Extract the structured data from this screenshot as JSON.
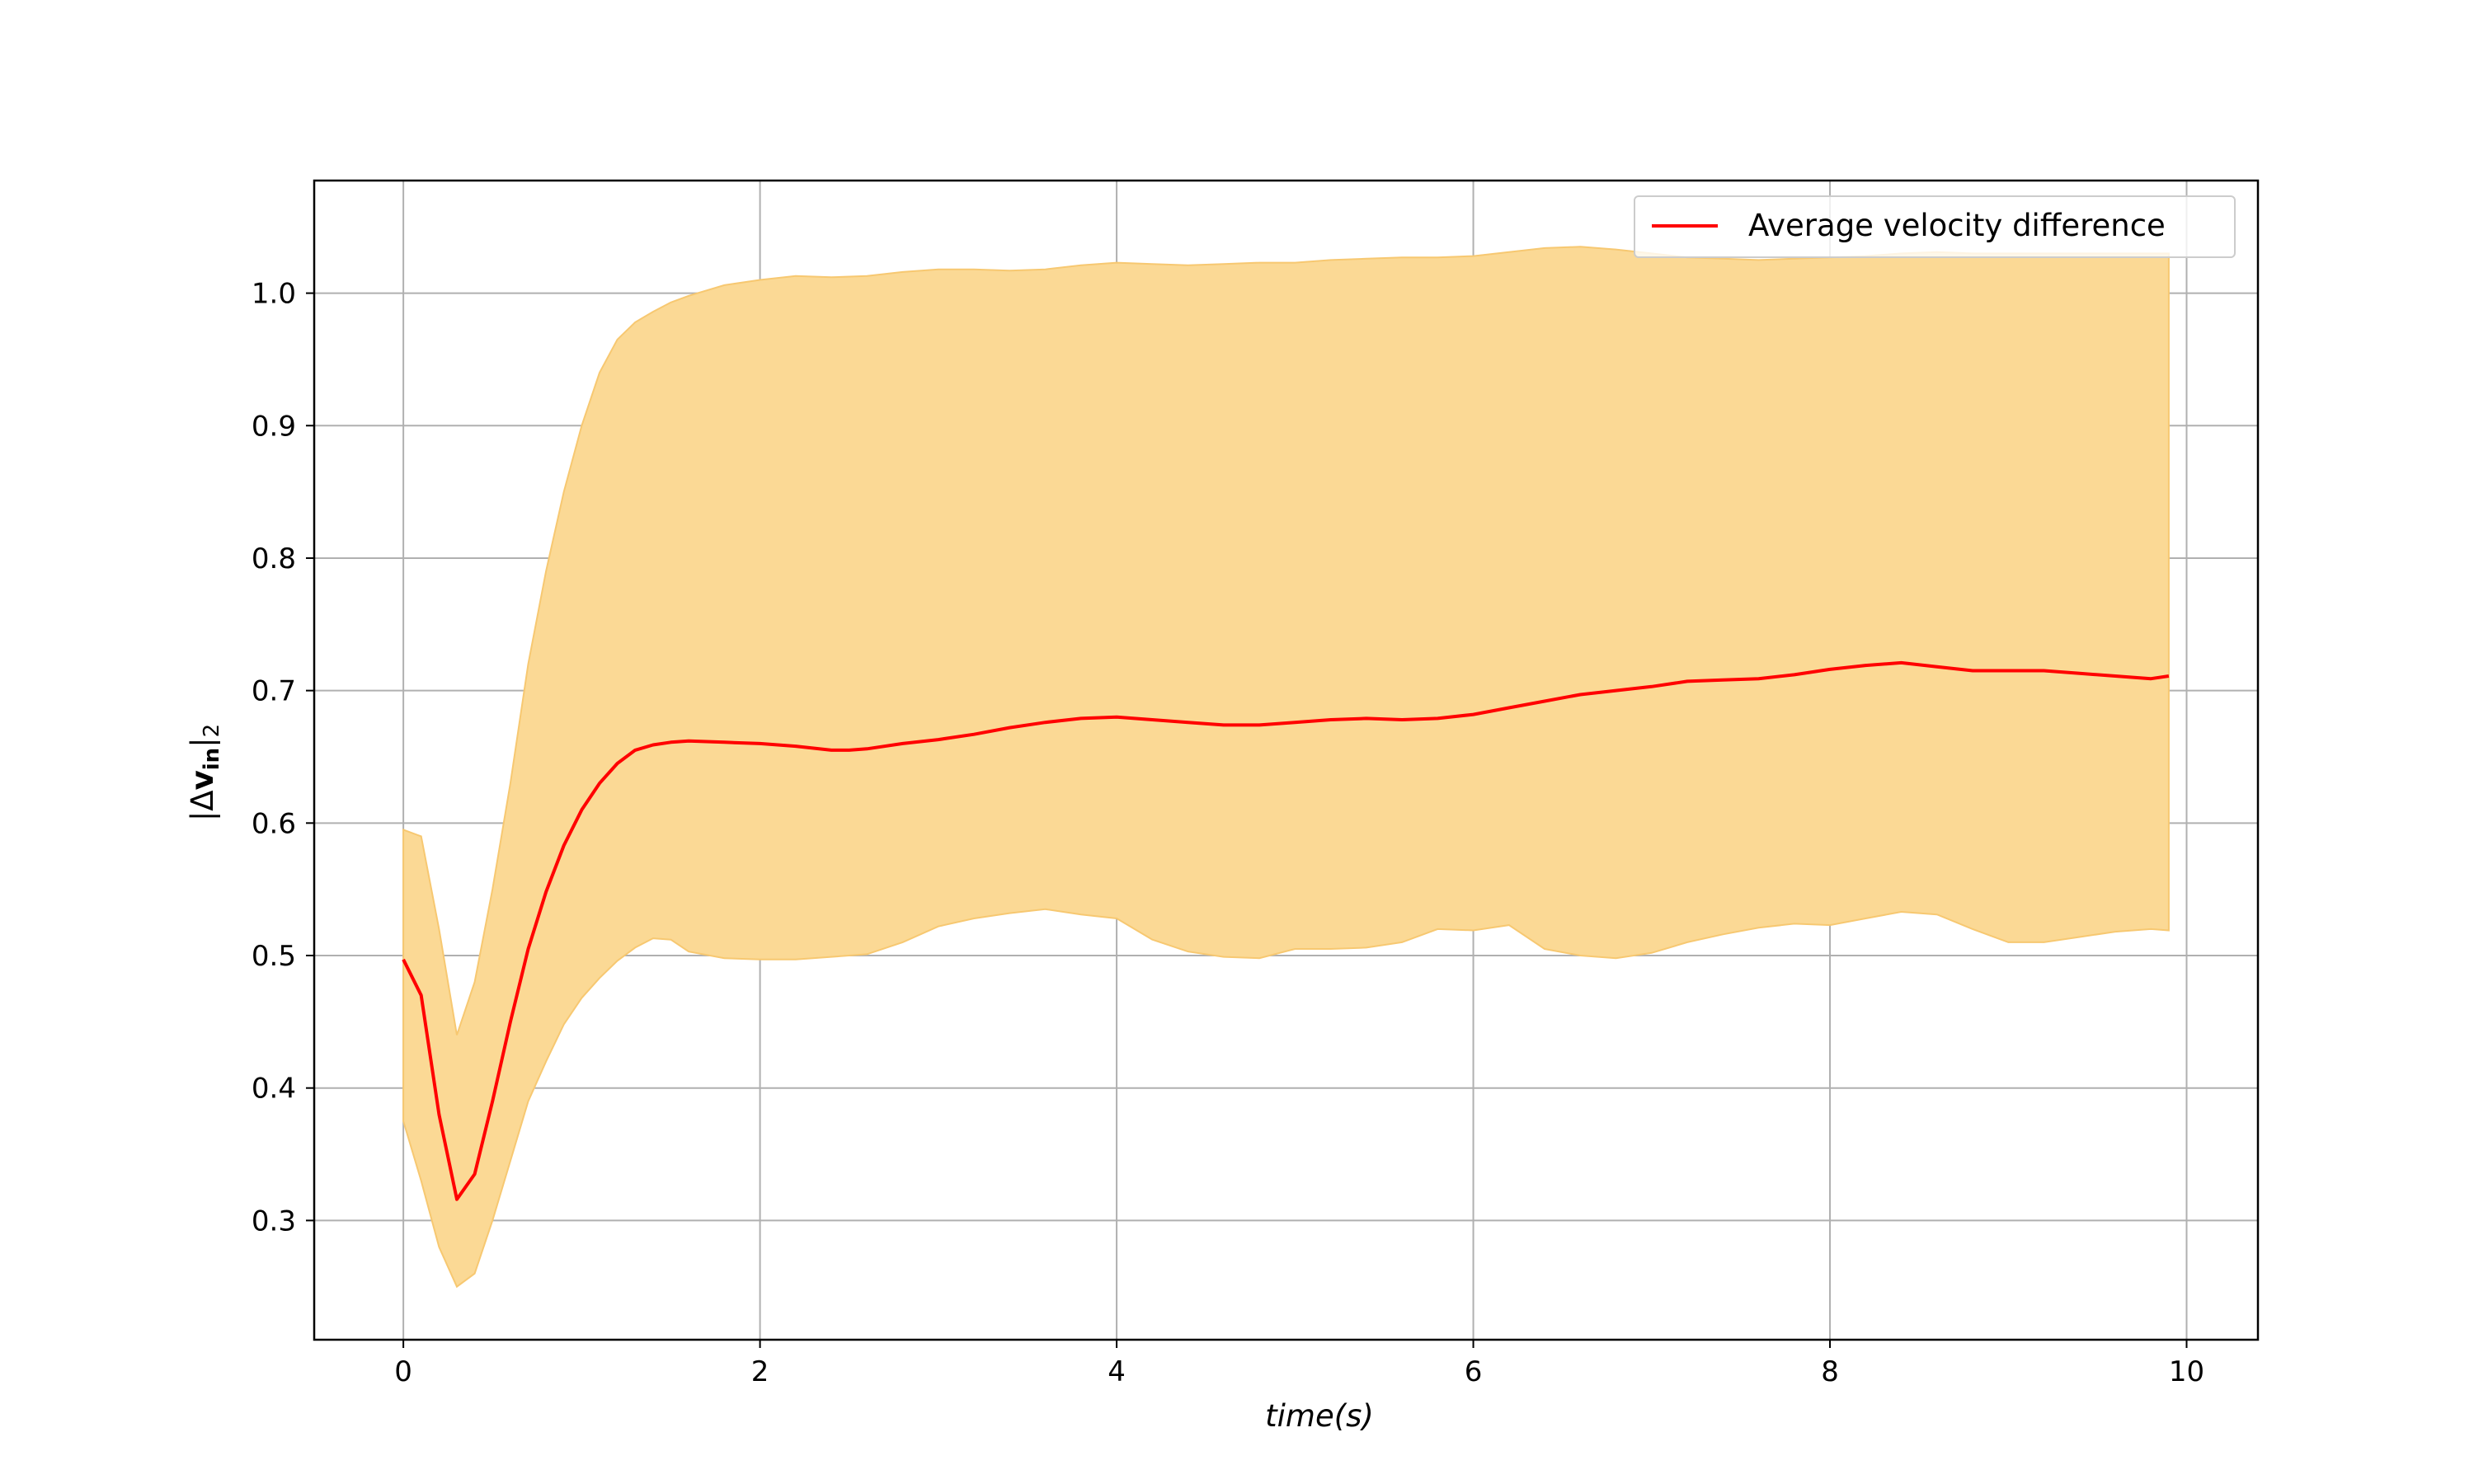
{
  "colors": {
    "line": "#ff0000",
    "band_fill": "#fbd995",
    "band_edge": "#f7c871",
    "grid": "#b0b0b0",
    "axes": "#000000"
  },
  "chart_data": {
    "type": "line",
    "title": "",
    "xlabel": "time(s)",
    "ylabel": "|Δv_in|_2",
    "ylabel_parts": {
      "open": "|Δ",
      "main": "v",
      "sub": "in",
      "close": "|",
      "subclose": "2"
    },
    "xlim": [
      -0.5,
      10.4
    ],
    "ylim": [
      0.21,
      1.085
    ],
    "x_ticks": [
      0,
      2,
      4,
      6,
      8,
      10
    ],
    "x_tick_labels": [
      "0",
      "2",
      "4",
      "6",
      "8",
      "10"
    ],
    "y_ticks": [
      0.3,
      0.4,
      0.5,
      0.6,
      0.7,
      0.8,
      0.9,
      1.0
    ],
    "y_tick_labels": [
      "0.3",
      "0.4",
      "0.5",
      "0.6",
      "0.7",
      "0.8",
      "0.9",
      "1.0"
    ],
    "grid": true,
    "legend": {
      "position": "top-right",
      "entries": [
        "Average velocity difference"
      ]
    },
    "series": [
      {
        "name": "Average velocity difference",
        "x": [
          0,
          0.1,
          0.2,
          0.3,
          0.4,
          0.5,
          0.6,
          0.7,
          0.8,
          0.9,
          1.0,
          1.1,
          1.2,
          1.3,
          1.4,
          1.5,
          1.6,
          1.8,
          2.0,
          2.2,
          2.4,
          2.5,
          2.6,
          2.8,
          3.0,
          3.2,
          3.4,
          3.6,
          3.8,
          4.0,
          4.2,
          4.4,
          4.6,
          4.8,
          5.0,
          5.2,
          5.4,
          5.6,
          5.8,
          6.0,
          6.2,
          6.4,
          6.6,
          6.8,
          7.0,
          7.2,
          7.4,
          7.6,
          7.8,
          8.0,
          8.2,
          8.4,
          8.6,
          8.8,
          9.0,
          9.2,
          9.4,
          9.6,
          9.8,
          9.9
        ],
        "y": [
          0.497,
          0.47,
          0.38,
          0.316,
          0.335,
          0.39,
          0.45,
          0.505,
          0.548,
          0.583,
          0.61,
          0.63,
          0.645,
          0.655,
          0.659,
          0.661,
          0.662,
          0.661,
          0.66,
          0.658,
          0.655,
          0.655,
          0.656,
          0.66,
          0.663,
          0.667,
          0.672,
          0.676,
          0.679,
          0.68,
          0.678,
          0.676,
          0.674,
          0.674,
          0.676,
          0.678,
          0.679,
          0.678,
          0.679,
          0.682,
          0.687,
          0.692,
          0.697,
          0.7,
          0.703,
          0.707,
          0.708,
          0.709,
          0.712,
          0.716,
          0.719,
          0.721,
          0.718,
          0.715,
          0.715,
          0.715,
          0.713,
          0.711,
          0.709,
          0.711
        ]
      }
    ],
    "band": {
      "x": [
        0,
        0.1,
        0.2,
        0.3,
        0.4,
        0.5,
        0.6,
        0.7,
        0.8,
        0.9,
        1.0,
        1.1,
        1.2,
        1.3,
        1.4,
        1.5,
        1.6,
        1.8,
        2.0,
        2.2,
        2.4,
        2.6,
        2.8,
        3.0,
        3.2,
        3.4,
        3.6,
        3.8,
        4.0,
        4.2,
        4.4,
        4.6,
        4.8,
        5.0,
        5.2,
        5.4,
        5.6,
        5.8,
        6.0,
        6.2,
        6.4,
        6.6,
        6.8,
        7.0,
        7.2,
        7.4,
        7.6,
        7.8,
        8.0,
        8.2,
        8.4,
        8.6,
        8.8,
        9.0,
        9.2,
        9.4,
        9.6,
        9.8,
        9.9
      ],
      "upper": [
        0.595,
        0.59,
        0.52,
        0.44,
        0.48,
        0.55,
        0.63,
        0.72,
        0.79,
        0.85,
        0.9,
        0.94,
        0.965,
        0.978,
        0.986,
        0.993,
        0.998,
        1.006,
        1.01,
        1.013,
        1.012,
        1.013,
        1.016,
        1.018,
        1.018,
        1.017,
        1.018,
        1.021,
        1.023,
        1.022,
        1.021,
        1.022,
        1.023,
        1.023,
        1.025,
        1.026,
        1.027,
        1.027,
        1.028,
        1.031,
        1.034,
        1.035,
        1.033,
        1.03,
        1.027,
        1.026,
        1.025,
        1.026,
        1.027,
        1.028,
        1.03,
        1.031,
        1.03,
        1.03,
        1.03,
        1.03,
        1.03,
        1.03,
        1.03
      ],
      "lower": [
        0.375,
        0.33,
        0.28,
        0.25,
        0.26,
        0.3,
        0.345,
        0.39,
        0.42,
        0.448,
        0.468,
        0.483,
        0.496,
        0.506,
        0.513,
        0.512,
        0.503,
        0.498,
        0.497,
        0.497,
        0.499,
        0.501,
        0.51,
        0.522,
        0.528,
        0.532,
        0.535,
        0.531,
        0.528,
        0.512,
        0.503,
        0.499,
        0.498,
        0.505,
        0.505,
        0.506,
        0.51,
        0.52,
        0.519,
        0.523,
        0.505,
        0.5,
        0.498,
        0.502,
        0.51,
        0.516,
        0.521,
        0.524,
        0.523,
        0.528,
        0.533,
        0.531,
        0.52,
        0.51,
        0.51,
        0.514,
        0.518,
        0.52,
        0.519
      ]
    }
  }
}
